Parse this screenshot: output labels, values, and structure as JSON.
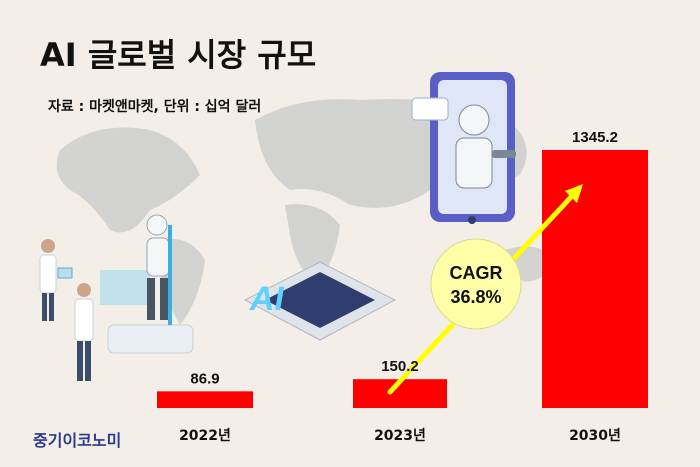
{
  "header": {
    "title": "AI 글로벌 시장 규모",
    "source": "자료 : 마켓앤마켓, 단위 : 십억 달러"
  },
  "brand": {
    "label": "중기이코노미"
  },
  "badge": {
    "line1": "CAGR",
    "line2": "36.8%"
  },
  "colors": {
    "bar": "#ff0000",
    "arrow": "#ffff00",
    "badge_fill": "#ffffa8",
    "background": "#f3efe8",
    "brand": "#2a3a8c"
  },
  "chart_data": {
    "type": "bar",
    "categories": [
      "2022년",
      "2023년",
      "2030년"
    ],
    "values": [
      86.9,
      150.2,
      1345.2
    ],
    "value_labels": [
      "86.9",
      "150.2",
      "1345.2"
    ],
    "title": "AI 글로벌 시장 규모",
    "xlabel": "",
    "ylabel": "",
    "ylim": [
      0,
      1345.2
    ],
    "grid": false,
    "legend": "none"
  },
  "illustrations": [
    "world-map",
    "scientist-figures",
    "humanoid-robot",
    "ai-chip",
    "robot-in-phone"
  ]
}
